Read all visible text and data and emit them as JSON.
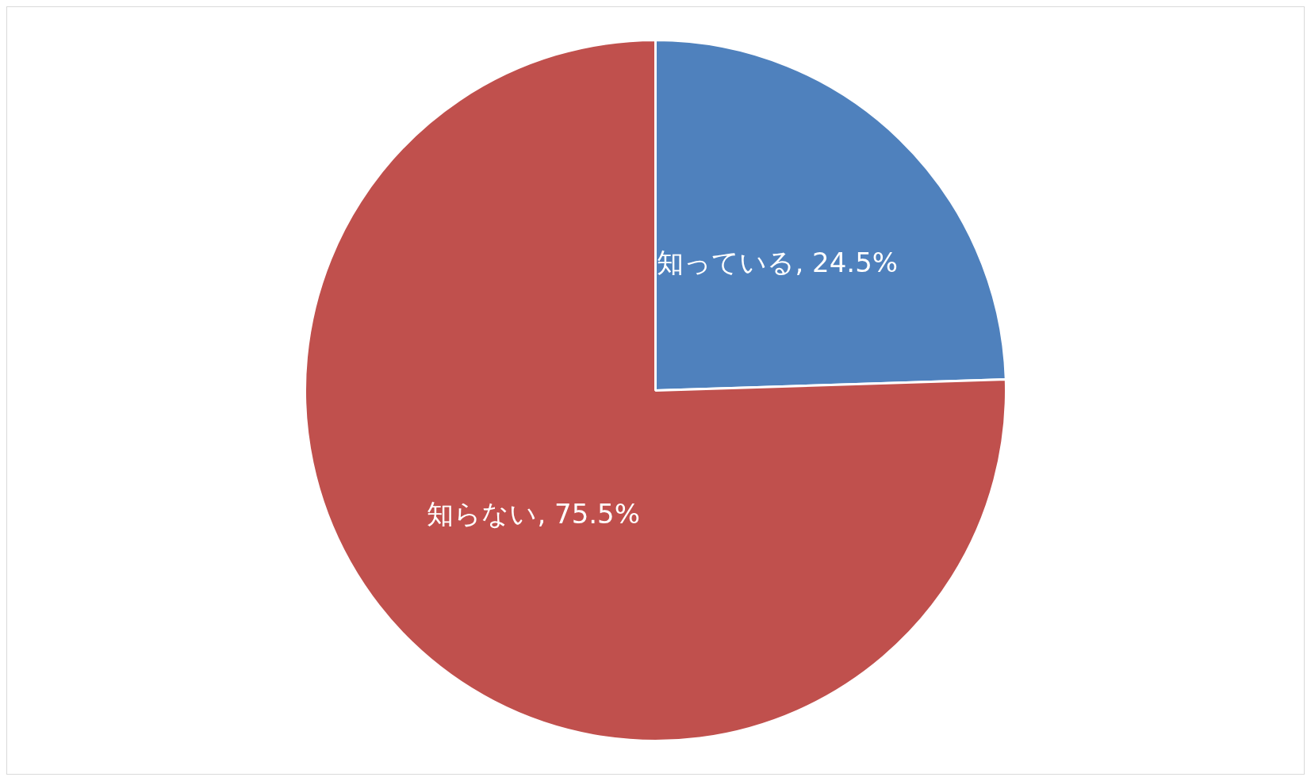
{
  "chart_data": {
    "type": "pie",
    "categories": [
      "知っている",
      "知らない"
    ],
    "values": [
      24.5,
      75.5
    ],
    "colors": [
      "#4f81bd",
      "#c0504d"
    ],
    "value_labels": [
      "24.5%",
      "75.5%"
    ],
    "legend": false
  }
}
